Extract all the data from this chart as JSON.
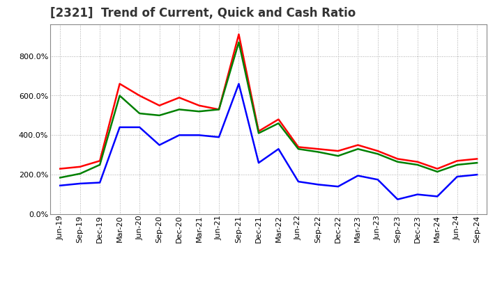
{
  "title": "[2321]  Trend of Current, Quick and Cash Ratio",
  "labels": [
    "Jun-19",
    "Sep-19",
    "Dec-19",
    "Mar-20",
    "Jun-20",
    "Sep-20",
    "Dec-20",
    "Mar-21",
    "Jun-21",
    "Sep-21",
    "Dec-21",
    "Mar-22",
    "Jun-22",
    "Sep-22",
    "Dec-22",
    "Mar-23",
    "Jun-23",
    "Sep-23",
    "Dec-23",
    "Mar-24",
    "Jun-24",
    "Sep-24"
  ],
  "current_ratio": [
    230,
    240,
    270,
    660,
    600,
    550,
    590,
    550,
    530,
    910,
    420,
    480,
    340,
    330,
    320,
    350,
    320,
    280,
    265,
    230,
    270,
    280
  ],
  "quick_ratio": [
    185,
    205,
    250,
    600,
    510,
    500,
    530,
    520,
    530,
    870,
    410,
    460,
    330,
    315,
    295,
    330,
    305,
    265,
    250,
    215,
    250,
    260
  ],
  "cash_ratio": [
    145,
    155,
    160,
    440,
    440,
    350,
    400,
    400,
    390,
    660,
    260,
    330,
    165,
    150,
    140,
    195,
    175,
    75,
    100,
    90,
    190,
    200
  ],
  "current_color": "#ff0000",
  "quick_color": "#008000",
  "cash_color": "#0000ff",
  "ylim": [
    0,
    960
  ],
  "yticks": [
    0,
    200,
    400,
    600,
    800
  ],
  "background_color": "#ffffff",
  "grid_color": "#aaaaaa",
  "line_width": 1.8,
  "title_fontsize": 12,
  "tick_fontsize": 8,
  "legend_fontsize": 9
}
